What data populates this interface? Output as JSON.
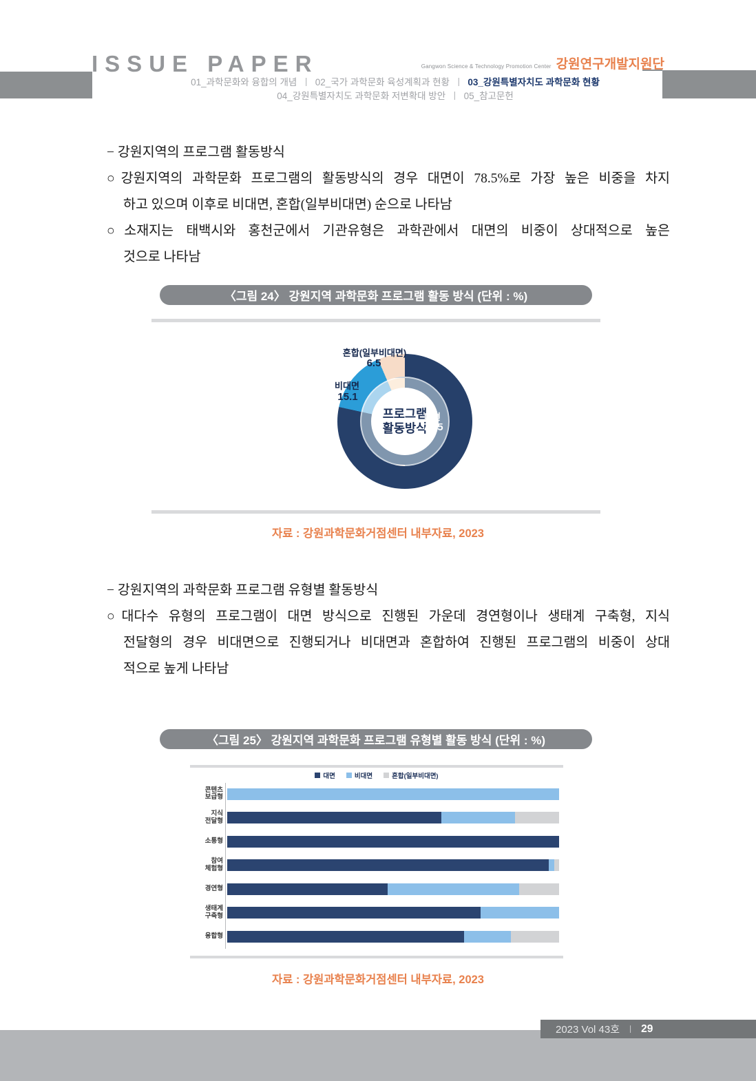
{
  "header": {
    "masthead": "ISSUE PAPER",
    "org_en": "Gangwon Science & Technology Promotion Center",
    "org_kr": "강원연구개발지원단",
    "nav_separator": "ㅣ",
    "nav_line1": [
      {
        "label": "01_과학문화와 융합의 개념",
        "active": false
      },
      {
        "label": "02_국가 과학문화 육성계획과 현황",
        "active": false
      },
      {
        "label": "03_강원특별자치도 과학문화 현황",
        "active": true
      }
    ],
    "nav_line2": [
      {
        "label": "04_강원특별자치도 과학문화 저변확대 방안",
        "active": false
      },
      {
        "label": "05_참고문헌",
        "active": false
      }
    ]
  },
  "sections": [
    {
      "lines": [
        {
          "text": "− 강원지역의 프로그램 활동방식",
          "style": "dash"
        },
        {
          "text": "○강원지역의 과학문화 프로그램의 활동방식의 경우 대면이 78.5%로 가장 높은 비중을 차지",
          "style": "circle fill"
        },
        {
          "text": "하고 있으며 이후로 비대면, 혼합(일부비대면) 순으로 나타남",
          "style": "cont"
        },
        {
          "text": "○소재지는 태백시와 홍천군에서 기관유형은 과학관에서 대면의 비중이 상대적으로 높은",
          "style": "circle fill"
        },
        {
          "text": "것으로 나타남",
          "style": "cont"
        }
      ]
    },
    {
      "lines": [
        {
          "text": "− 강원지역의 과학문화 프로그램 유형별 활동방식",
          "style": "dash"
        },
        {
          "text": "○대다수 유형의 프로그램이 대면 방식으로 진행된 가운데 경연형이나 생태계 구축형, 지식",
          "style": "circle fill"
        },
        {
          "text": "전달형의 경우 비대면으로 진행되거나 비대면과 혼합하여 진행된 프로그램의 비중이 상대",
          "style": "cont fill"
        },
        {
          "text": "적으로 높게 나타남",
          "style": "cont"
        }
      ]
    }
  ],
  "figures": [
    {
      "source": "자료 : 강원과학문화거점센터 내부자료, 2023"
    },
    {
      "source": "자료 : 강원과학문화거점센터 내부자료, 2023"
    }
  ],
  "footer": {
    "volume": "2023 Vol 43호",
    "separator": "ㅣ",
    "page": "29"
  },
  "chart_data": [
    {
      "type": "pie",
      "subtype": "donut",
      "title": "〈그림 24〉 강원지역 과학문화 프로그램 활동 방식 (단위 : %)",
      "center_label_lines": [
        "프로그램",
        "활동방식"
      ],
      "slices": [
        {
          "label": "대면",
          "value": 78.5,
          "color": "#26406a",
          "muted_color": "#8096ae"
        },
        {
          "label": "비대면",
          "value": 15.1,
          "color": "#2b9dd8",
          "muted_color": "#abd5ef"
        },
        {
          "label": "혼합(일부비대면)",
          "value": 6.5,
          "color": "#f7dcc8",
          "muted_color": "#fceede"
        }
      ],
      "start_angle_deg": 0,
      "direction": "clockwise"
    },
    {
      "type": "bar",
      "stacked": true,
      "orientation": "horizontal",
      "title": "〈그림 25〉 강원지역 과학문화 프로그램 유형별 활동 방식 (단위 : %)",
      "categories": [
        "콘텐츠\n보급형",
        "지식\n전달형",
        "소통형",
        "참여\n체험형",
        "경연형",
        "생태계\n구축형",
        "융합형"
      ],
      "series": [
        {
          "name": "대면",
          "color": "#2b4470",
          "values": [
            0,
            64.6,
            100,
            96.9,
            48.3,
            76.3,
            71.3
          ]
        },
        {
          "name": "비대면",
          "color": "#8cbfe9",
          "values": [
            100,
            22.2,
            0,
            1.6,
            39.6,
            23.7,
            14.2
          ]
        },
        {
          "name": "혼합(일부비대면)",
          "color": "#d2d3d5",
          "values": [
            0,
            13.2,
            0,
            1.5,
            12.1,
            0,
            14.5
          ]
        }
      ],
      "xlim": [
        0,
        100
      ],
      "legend_position": "top-center",
      "grid": false
    }
  ]
}
